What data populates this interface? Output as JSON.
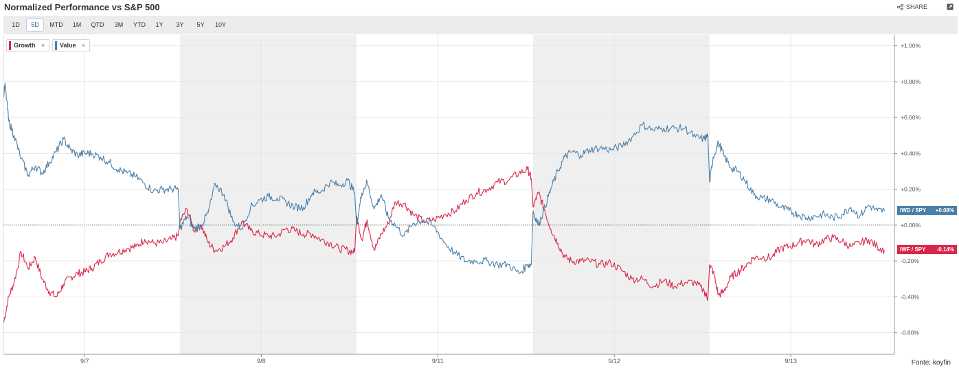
{
  "title": "Normalized Performance vs S&P 500",
  "share_label": "SHARE",
  "ranges": [
    "1D",
    "5D",
    "MTD",
    "1M",
    "QTD",
    "3M",
    "YTD",
    "1Y",
    "3Y",
    "5Y",
    "10Y"
  ],
  "active_range": "5D",
  "source": "Fonte: koyfin",
  "colors": {
    "growth": "#d9274a",
    "value": "#4a7fa8",
    "band": "#efefef"
  },
  "legend": [
    {
      "name": "Growth",
      "color": "#d9274a"
    },
    {
      "name": "Value",
      "color": "#4a7fa8"
    }
  ],
  "tags": {
    "value": {
      "ticker": "IWD / SPY",
      "value": "+0.08%"
    },
    "growth": {
      "ticker": "IWF / SPY",
      "value": "-0.14%"
    }
  },
  "chart_data": {
    "type": "line",
    "title": "Normalized Performance vs S&P 500",
    "xlabel": "",
    "ylabel": "",
    "x_tick_labels": [
      "9/7",
      "9/8",
      "9/11",
      "9/12",
      "9/13"
    ],
    "y_tick_labels": [
      "+1.00%",
      "+0.80%",
      "+0.60%",
      "+0.40%",
      "+0.20%",
      "+0.00%",
      "-0.20%",
      "-0.40%",
      "-0.60%"
    ],
    "ylim": [
      -0.72,
      1.06
    ],
    "x_sessions": 5,
    "shaded_sessions": [
      2,
      4
    ],
    "series": [
      {
        "name": "Growth",
        "ticker": "IWF / SPY",
        "last": -0.14,
        "x": [
          0,
          0.03,
          0.06,
          0.1,
          0.14,
          0.18,
          0.22,
          0.26,
          0.3,
          0.34,
          0.38,
          0.42,
          0.46,
          0.5,
          0.55,
          0.6,
          0.65,
          0.7,
          0.75,
          0.8,
          0.85,
          0.9,
          0.95,
          0.99,
          1.0,
          1.04,
          1.08,
          1.12,
          1.16,
          1.2,
          1.25,
          1.3,
          1.35,
          1.4,
          1.45,
          1.5,
          1.55,
          1.6,
          1.65,
          1.7,
          1.75,
          1.8,
          1.85,
          1.9,
          1.95,
          1.99,
          2.0,
          2.03,
          2.06,
          2.1,
          2.14,
          2.18,
          2.22,
          2.27,
          2.32,
          2.38,
          2.44,
          2.5,
          2.56,
          2.62,
          2.68,
          2.74,
          2.8,
          2.86,
          2.92,
          2.97,
          2.99,
          3.0,
          3.03,
          3.06,
          3.1,
          3.14,
          3.18,
          3.22,
          3.27,
          3.32,
          3.38,
          3.44,
          3.5,
          3.56,
          3.62,
          3.68,
          3.74,
          3.8,
          3.86,
          3.92,
          3.97,
          3.99,
          4.0,
          4.02,
          4.05,
          4.08,
          4.12,
          4.16,
          4.2,
          4.25,
          4.3,
          4.35,
          4.4,
          4.45,
          4.5,
          4.55,
          4.6,
          4.65,
          4.7,
          4.75,
          4.8,
          4.85,
          4.9,
          4.95,
          4.99
        ],
        "values": [
          -0.55,
          -0.4,
          -0.32,
          -0.15,
          -0.24,
          -0.18,
          -0.3,
          -0.37,
          -0.4,
          -0.33,
          -0.29,
          -0.27,
          -0.26,
          -0.24,
          -0.2,
          -0.16,
          -0.15,
          -0.13,
          -0.12,
          -0.08,
          -0.1,
          -0.1,
          -0.08,
          -0.06,
          0.02,
          0.09,
          -0.03,
          0.0,
          -0.1,
          -0.14,
          -0.12,
          -0.07,
          0.02,
          -0.03,
          -0.05,
          -0.06,
          -0.06,
          -0.02,
          -0.03,
          -0.05,
          -0.05,
          -0.08,
          -0.1,
          -0.13,
          -0.14,
          -0.15,
          0.05,
          -0.08,
          0.03,
          -0.14,
          -0.05,
          0.01,
          0.13,
          0.12,
          0.06,
          0.02,
          0.03,
          0.06,
          0.08,
          0.14,
          0.18,
          0.2,
          0.24,
          0.25,
          0.29,
          0.31,
          0.26,
          0.1,
          0.18,
          0.1,
          -0.02,
          -0.1,
          -0.18,
          -0.2,
          -0.2,
          -0.2,
          -0.22,
          -0.21,
          -0.25,
          -0.3,
          -0.3,
          -0.34,
          -0.31,
          -0.34,
          -0.32,
          -0.32,
          -0.37,
          -0.41,
          -0.22,
          -0.26,
          -0.39,
          -0.37,
          -0.29,
          -0.26,
          -0.23,
          -0.18,
          -0.18,
          -0.18,
          -0.13,
          -0.12,
          -0.1,
          -0.08,
          -0.11,
          -0.08,
          -0.07,
          -0.09,
          -0.12,
          -0.1,
          -0.08,
          -0.12,
          -0.14
        ]
      },
      {
        "name": "Value",
        "ticker": "IWD / SPY",
        "last": 0.08,
        "x": [
          0,
          0.01,
          0.03,
          0.06,
          0.1,
          0.14,
          0.18,
          0.22,
          0.26,
          0.3,
          0.34,
          0.38,
          0.42,
          0.46,
          0.5,
          0.55,
          0.6,
          0.65,
          0.7,
          0.75,
          0.8,
          0.85,
          0.9,
          0.95,
          0.99,
          1.0,
          1.04,
          1.08,
          1.12,
          1.16,
          1.2,
          1.25,
          1.3,
          1.35,
          1.4,
          1.45,
          1.5,
          1.55,
          1.6,
          1.65,
          1.7,
          1.75,
          1.8,
          1.85,
          1.9,
          1.95,
          1.99,
          2.0,
          2.03,
          2.06,
          2.1,
          2.14,
          2.18,
          2.22,
          2.27,
          2.32,
          2.38,
          2.44,
          2.5,
          2.56,
          2.62,
          2.68,
          2.74,
          2.8,
          2.86,
          2.92,
          2.97,
          2.99,
          3.0,
          3.03,
          3.06,
          3.1,
          3.14,
          3.18,
          3.22,
          3.27,
          3.32,
          3.38,
          3.44,
          3.5,
          3.56,
          3.62,
          3.68,
          3.74,
          3.8,
          3.86,
          3.92,
          3.97,
          3.99,
          4.0,
          4.02,
          4.05,
          4.08,
          4.12,
          4.16,
          4.2,
          4.25,
          4.3,
          4.35,
          4.4,
          4.45,
          4.5,
          4.55,
          4.6,
          4.65,
          4.7,
          4.75,
          4.8,
          4.85,
          4.9,
          4.95,
          4.99
        ],
        "values": [
          0.72,
          0.78,
          0.58,
          0.5,
          0.37,
          0.28,
          0.33,
          0.29,
          0.35,
          0.41,
          0.48,
          0.42,
          0.39,
          0.4,
          0.4,
          0.38,
          0.35,
          0.31,
          0.29,
          0.27,
          0.23,
          0.19,
          0.2,
          0.2,
          0.2,
          -0.02,
          0.05,
          -0.02,
          0.0,
          0.07,
          0.23,
          0.17,
          0.02,
          -0.02,
          0.1,
          0.14,
          0.16,
          0.15,
          0.13,
          0.1,
          0.1,
          0.18,
          0.19,
          0.24,
          0.22,
          0.25,
          0.18,
          0.0,
          0.18,
          0.24,
          0.09,
          0.17,
          0.04,
          0.0,
          -0.06,
          0.01,
          0.03,
          -0.01,
          -0.1,
          -0.16,
          -0.2,
          -0.2,
          -0.2,
          -0.22,
          -0.22,
          -0.27,
          -0.22,
          -0.22,
          0.08,
          0.0,
          0.08,
          0.2,
          0.3,
          0.38,
          0.41,
          0.39,
          0.42,
          0.43,
          0.42,
          0.44,
          0.49,
          0.56,
          0.53,
          0.54,
          0.54,
          0.54,
          0.49,
          0.48,
          0.5,
          0.24,
          0.38,
          0.46,
          0.39,
          0.32,
          0.3,
          0.25,
          0.17,
          0.15,
          0.14,
          0.1,
          0.08,
          0.06,
          0.04,
          0.05,
          0.06,
          0.04,
          0.06,
          0.1,
          0.05,
          0.11,
          0.08,
          0.08
        ]
      }
    ]
  }
}
